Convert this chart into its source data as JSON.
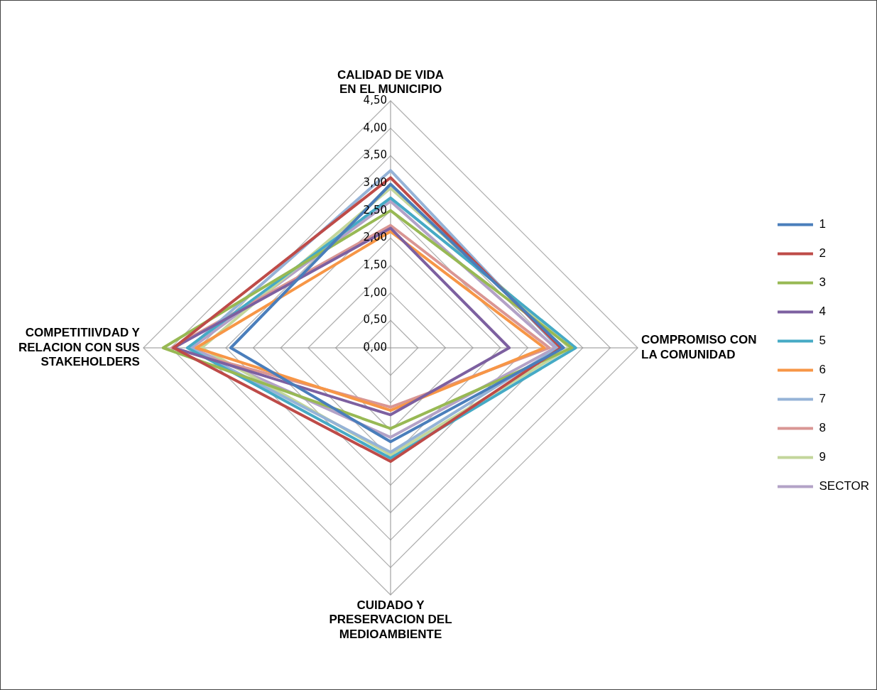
{
  "chart_data": {
    "type": "radar",
    "categories": [
      "CALIDAD DE VIDA EN EL MUNICIPIO",
      "COMPROMISO CON LA COMUNIDAD",
      "CUIDADO Y PRESERVACION DEL MEDIOAMBIENTE",
      "COMPETITIIVDAD Y RELACION CON SUS STAKEHOLDERS"
    ],
    "ylim": [
      0,
      4.5
    ],
    "yticks": [
      {
        "value": 0,
        "label": "0,00"
      },
      {
        "value": 0.5,
        "label": "0,50"
      },
      {
        "value": 1,
        "label": "1,00"
      },
      {
        "value": 1.5,
        "label": "1,50"
      },
      {
        "value": 2,
        "label": "2,00"
      },
      {
        "value": 2.5,
        "label": "2,50"
      },
      {
        "value": 3,
        "label": "3,00"
      },
      {
        "value": 3.5,
        "label": "3,50"
      },
      {
        "value": 4,
        "label": "4,00"
      },
      {
        "value": 4.5,
        "label": "4,50"
      }
    ],
    "grid": true,
    "legend": "right",
    "marker": "none",
    "series": [
      {
        "name": "1",
        "color": "#4a7ebb",
        "values": [
          2.98,
          3.15,
          1.71,
          2.91
        ]
      },
      {
        "name": "2",
        "color": "#be4b48",
        "values": [
          3.1,
          3.1,
          2.07,
          3.95
        ]
      },
      {
        "name": "3",
        "color": "#98b954",
        "values": [
          2.5,
          3.3,
          1.47,
          4.14
        ]
      },
      {
        "name": "4",
        "color": "#7d60a0",
        "values": [
          2.18,
          2.16,
          1.22,
          3.95
        ]
      },
      {
        "name": "5",
        "color": "#46aac5",
        "values": [
          2.73,
          3.37,
          2.01,
          3.7
        ]
      },
      {
        "name": "6",
        "color": "#f79646",
        "values": [
          2.12,
          2.8,
          1.14,
          3.54
        ]
      },
      {
        "name": "7",
        "color": "#95b3d7",
        "values": [
          3.23,
          3.06,
          1.9,
          3.66
        ]
      },
      {
        "name": "8",
        "color": "#d99694",
        "values": [
          2.23,
          2.89,
          1.08,
          3.98
        ]
      },
      {
        "name": "9",
        "color": "#c3d69b",
        "values": [
          2.91,
          3.26,
          1.95,
          3.44
        ]
      },
      {
        "name": "SECTOR",
        "color": "#b3a2c7",
        "values": [
          2.67,
          3.0,
          1.63,
          3.62
        ]
      }
    ]
  }
}
